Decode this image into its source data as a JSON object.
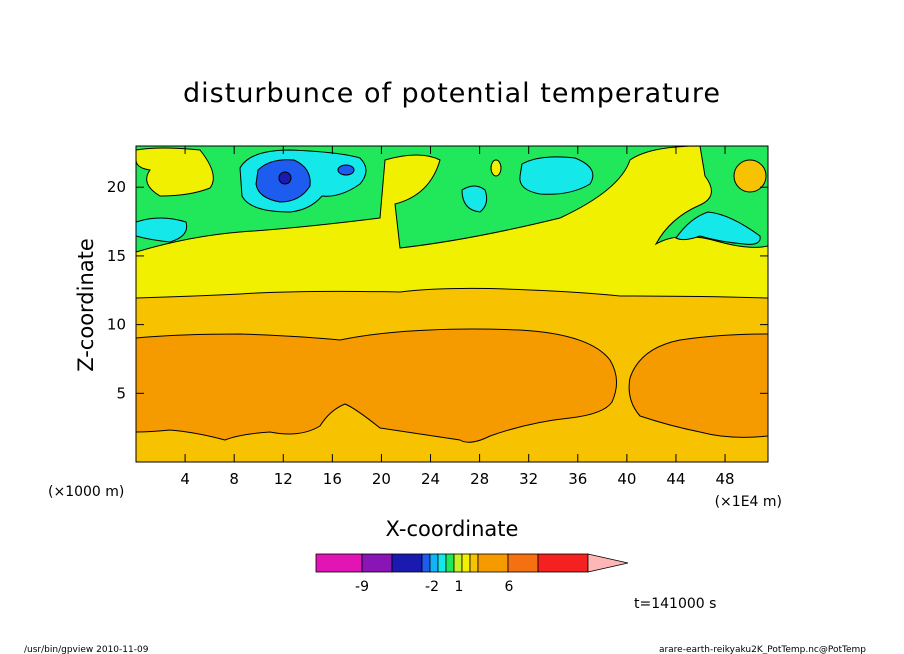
{
  "chart_data": {
    "type": "heatmap",
    "title": "disturbunce of potential temperature",
    "xlabel": "X-coordinate",
    "ylabel": "Z-coordinate",
    "x_unit": "(×1000 m)",
    "x_scale_note": "(×1E4 m)",
    "xlim": [
      0,
      51.5
    ],
    "ylim": [
      0,
      23
    ],
    "x_ticks": [
      4,
      8,
      12,
      16,
      20,
      24,
      28,
      32,
      36,
      40,
      44,
      48
    ],
    "y_ticks": [
      5,
      10,
      15,
      20
    ],
    "colorbar": {
      "colors": [
        "#e314b4",
        "#8a15b7",
        "#1a1ab0",
        "#1e5cf0",
        "#12b4f5",
        "#14e8e8",
        "#20e85a",
        "#c8f028",
        "#f0f000",
        "#f7c300",
        "#f59b00",
        "#f57010",
        "#f52020",
        "#ff7f7f",
        "#ffb6b6"
      ],
      "tick_labels": [
        "-9",
        "-2",
        "1",
        "6"
      ]
    },
    "regions": [
      {
        "level": "green",
        "color": "#20e85a",
        "desc": "upper layer z 14-23 km"
      },
      {
        "level": "cyan",
        "color": "#14e8e8",
        "desc": "patches near z 17-22"
      },
      {
        "level": "blue",
        "color": "#1e5cf0",
        "desc": "cell near x 12, z 20.5"
      },
      {
        "level": "yellow",
        "color": "#f0f000",
        "desc": "band z 12-16"
      },
      {
        "level": "light-orange",
        "color": "#f7c300",
        "desc": "band z 9-12 and bottom"
      },
      {
        "level": "orange",
        "color": "#f59b00",
        "desc": "core z 1.5-9.5"
      }
    ]
  },
  "time_label": "t=141000 s",
  "footer_left": "/usr/bin/gpview  2010-11-09",
  "footer_right": "arare-earth-reikyaku2K_PotTemp.nc@PotTemp"
}
